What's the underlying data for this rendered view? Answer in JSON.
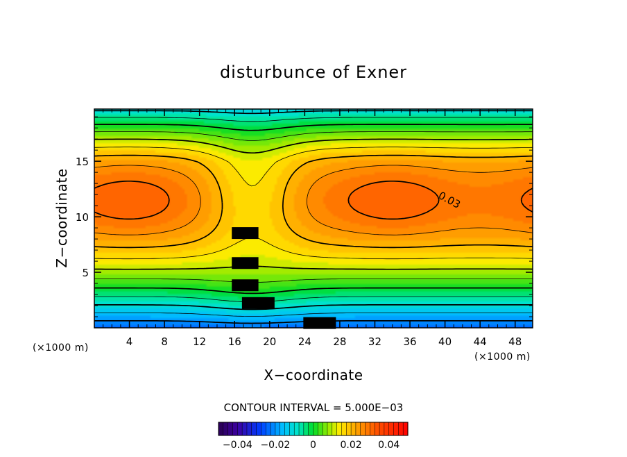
{
  "chart_data": {
    "type": "contour",
    "title": "disturbunce of Exner",
    "xlabel": "X−coordinate",
    "ylabel": "Z−coordinate",
    "x_unit_left": "(×1000 m)",
    "x_unit_right": "(×1000 m)",
    "x_ticks": [
      4,
      8,
      12,
      16,
      20,
      24,
      28,
      32,
      36,
      40,
      44,
      48
    ],
    "y_ticks": [
      5,
      10,
      15
    ],
    "xlim": [
      0,
      50
    ],
    "ylim": [
      0,
      19.7
    ],
    "contour_interval_text": "CONTOUR INTERVAL = 5.000E−03",
    "contour_labels": [
      {
        "text": "0.03",
        "x": 40.5,
        "y": 11.5
      },
      {
        "text": "0.02",
        "x": 17.2,
        "y": 8.5
      },
      {
        "text": "0.01",
        "x": 17.2,
        "y": 5.8
      },
      {
        "text": "0.00",
        "x": 17.2,
        "y": 3.8
      },
      {
        "text": "−0.01",
        "x": 18.7,
        "y": 2.2
      },
      {
        "text": "−0.02",
        "x": 25.7,
        "y": 0.4
      }
    ],
    "colorbar": {
      "range": [
        -0.05,
        0.05
      ],
      "ticks": [
        -0.04,
        -0.02,
        0,
        0.02,
        0.04
      ],
      "tick_labels": [
        "−0.04",
        "−0.02",
        "0",
        "0.02",
        "0.04"
      ]
    },
    "field_summary": "Exner pressure disturbance; maxima ~0.035 near (4,11.5) and (34,11.5); minimum ~-0.025 near (18,0); saddle near (18,12)"
  }
}
